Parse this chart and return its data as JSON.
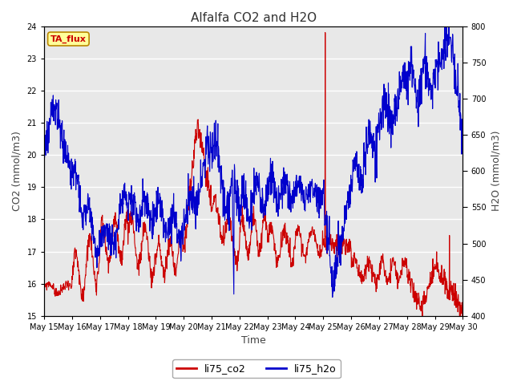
{
  "title": "Alfalfa CO2 and H2O",
  "xlabel": "Time",
  "ylabel_left": "CO2 (mmol/m3)",
  "ylabel_right": "H2O (mmol/m3)",
  "co2_ylim": [
    15.0,
    24.0
  ],
  "h2o_ylim": [
    400,
    800
  ],
  "co2_yticks": [
    15.0,
    16.0,
    17.0,
    18.0,
    19.0,
    20.0,
    21.0,
    22.0,
    23.0,
    24.0
  ],
  "h2o_yticks": [
    400,
    450,
    500,
    550,
    600,
    650,
    700,
    750,
    800
  ],
  "co2_color": "#cc0000",
  "h2o_color": "#0000cc",
  "background_color": "#ffffff",
  "plot_bg_color": "#e8e8e8",
  "grid_color": "#ffffff",
  "annotation_text": "TA_flux",
  "annotation_bg": "#ffff99",
  "annotation_border": "#bb8800",
  "annotation_text_color": "#cc0000",
  "xtick_labels": [
    "May 15",
    "May 16",
    "May 17",
    "May 18",
    "May 19",
    "May 20",
    "May 21",
    "May 22",
    "May 23",
    "May 24",
    "May 25",
    "May 26",
    "May 27",
    "May 28",
    "May 29",
    "May 30"
  ],
  "legend_co2": "li75_co2",
  "legend_h2o": "li75_h2o",
  "linewidth": 0.8,
  "figsize": [
    6.4,
    4.8
  ],
  "dpi": 100
}
